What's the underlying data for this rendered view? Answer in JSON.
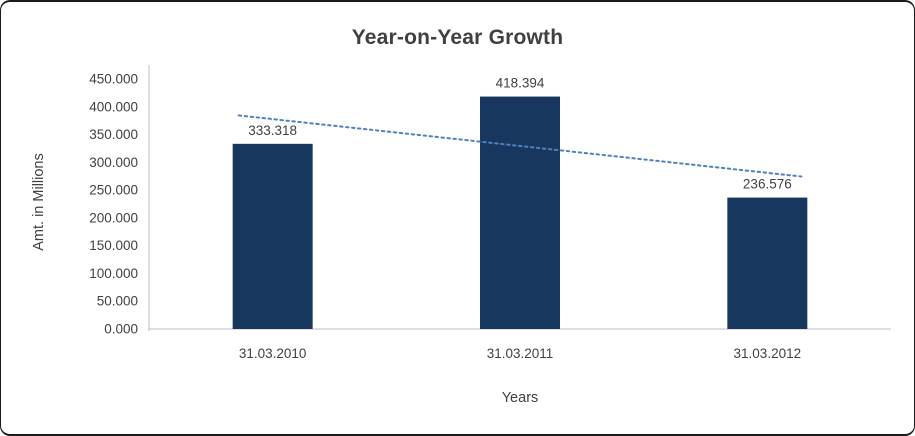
{
  "chart_data": {
    "type": "bar",
    "title": "Year-on-Year Growth",
    "xlabel": "Years",
    "ylabel": "Amt. in Millions",
    "categories": [
      "31.03.2010",
      "31.03.2011",
      "31.03.2012"
    ],
    "values": [
      333.318,
      418.394,
      236.576
    ],
    "value_labels": [
      "333.318",
      "418.394",
      "236.576"
    ],
    "ylim": [
      0,
      450
    ],
    "ytick_step": 50,
    "ytick_labels": [
      "0.000",
      "50.000",
      "100.000",
      "150.000",
      "200.000",
      "250.000",
      "300.000",
      "350.000",
      "400.000",
      "450.000"
    ],
    "grid": false,
    "legend": false,
    "bar_color": "#17375E",
    "label_color": "#404040",
    "axis_color": "#BFBFBF",
    "trendline": {
      "type": "linear",
      "style": "dotted",
      "color": "#4F81BD",
      "start_value": 377.8,
      "end_value": 281.1
    }
  }
}
